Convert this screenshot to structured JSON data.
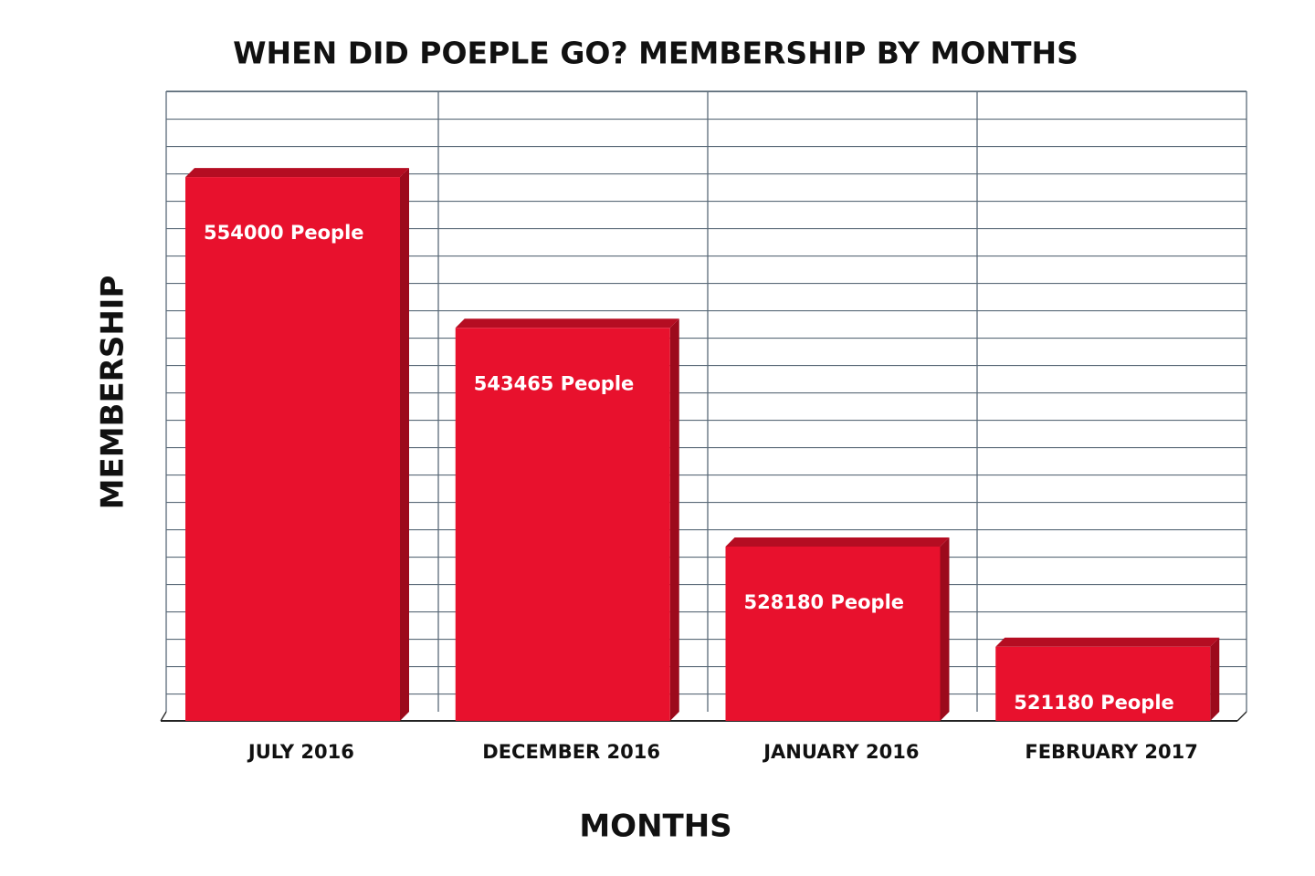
{
  "chart_data": {
    "type": "bar",
    "title": "WHEN DID POEPLE GO? MEMBERSHIP BY MONTHS",
    "x_label": "MONTHS",
    "y_label": "MEMBERSHIP",
    "categories": [
      "JULY 2016",
      "DECEMBER 2016",
      "JANUARY 2016",
      "FEBRUARY 2017"
    ],
    "values": [
      554000,
      543465,
      528180,
      521180
    ],
    "value_labels": [
      "554000 People",
      "543465 People",
      "528180 People",
      "521180 People"
    ],
    "color": "#e8112d",
    "ylim": [
      516000,
      560000
    ]
  }
}
